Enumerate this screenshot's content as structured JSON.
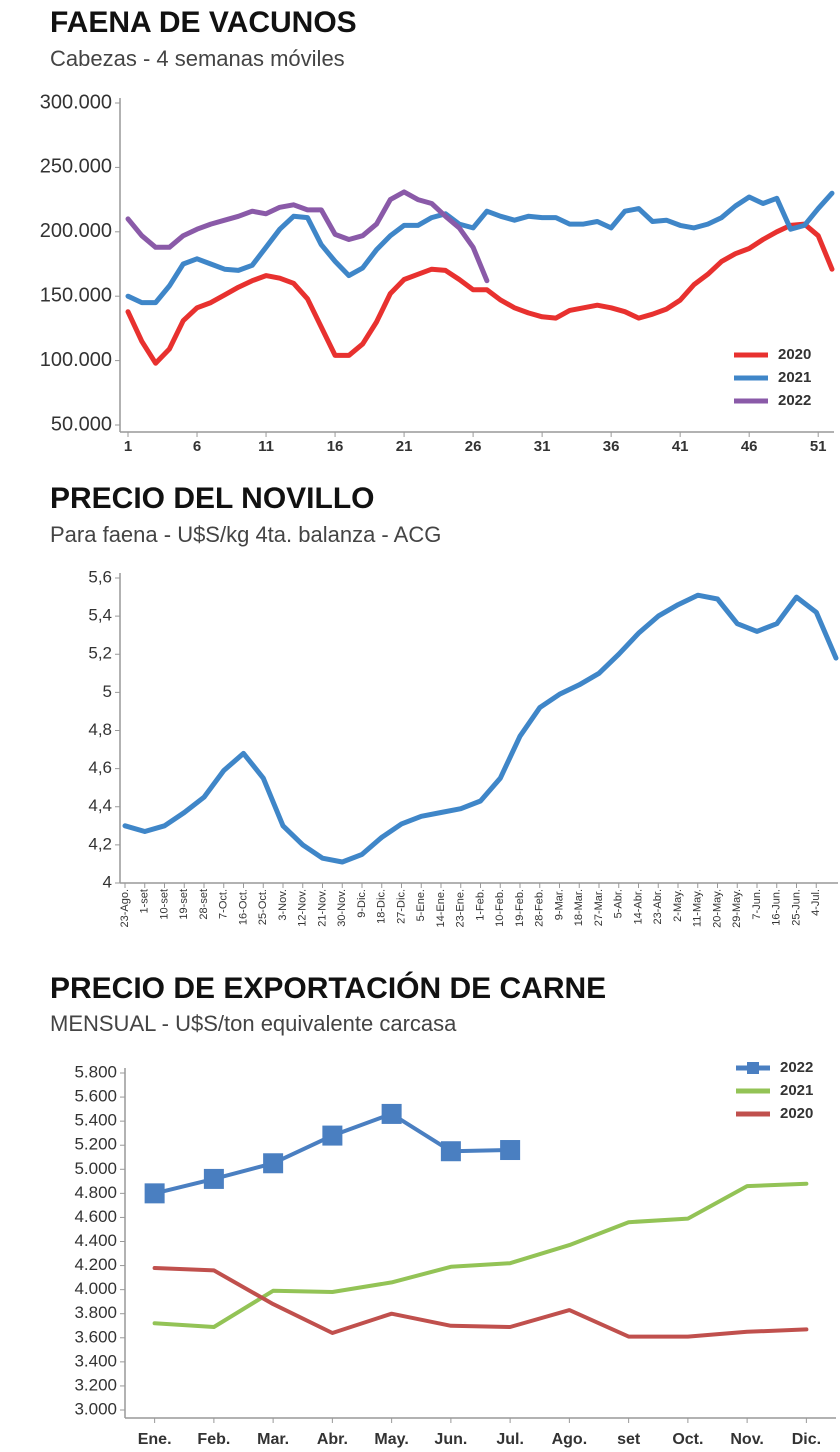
{
  "chart_data": [
    {
      "type": "line",
      "title": "FAENA DE VACUNOS",
      "subtitle": "Cabezas - 4 semanas móviles",
      "x": [
        1,
        2,
        3,
        4,
        5,
        6,
        7,
        8,
        9,
        10,
        11,
        12,
        13,
        14,
        15,
        16,
        17,
        18,
        19,
        20,
        21,
        22,
        23,
        24,
        25,
        26,
        27,
        28,
        29,
        30,
        31,
        32,
        33,
        34,
        35,
        36,
        37,
        38,
        39,
        40,
        41,
        42,
        43,
        44,
        45,
        46,
        47,
        48,
        49,
        50,
        51,
        52
      ],
      "xlim": [
        1,
        52
      ],
      "xticks": [
        1,
        6,
        11,
        16,
        21,
        26,
        31,
        36,
        41,
        46,
        51
      ],
      "ylim": [
        50000,
        300000
      ],
      "yticks": [
        {
          "value": 50000,
          "label": "50.000"
        },
        {
          "value": 100000,
          "label": "100.000"
        },
        {
          "value": 150000,
          "label": "150.000"
        },
        {
          "value": 200000,
          "label": "200.000"
        },
        {
          "value": 250000,
          "label": "250.000"
        },
        {
          "value": 300000,
          "label": "300.000"
        }
      ],
      "grid": false,
      "legend": "lower right",
      "series": [
        {
          "name": "2020",
          "color": "#e8312f",
          "values": [
            138000,
            115000,
            98000,
            109000,
            131000,
            141000,
            145000,
            151000,
            157000,
            162000,
            166000,
            164000,
            160000,
            148000,
            126000,
            104000,
            104000,
            113000,
            130000,
            152000,
            163000,
            167000,
            171000,
            170000,
            163000,
            155000,
            155000,
            147000,
            141000,
            137000,
            134000,
            133000,
            139000,
            141000,
            143000,
            141000,
            138000,
            133000,
            136000,
            140000,
            147000,
            159000,
            167000,
            177000,
            183000,
            187000,
            194000,
            200000,
            205000,
            206000,
            197000,
            171000
          ]
        },
        {
          "name": "2021",
          "color": "#3f86c8",
          "values": [
            150000,
            145000,
            145000,
            158000,
            175000,
            179000,
            175000,
            171000,
            170000,
            174000,
            188000,
            202000,
            212000,
            211000,
            190000,
            177000,
            166000,
            172000,
            186000,
            197000,
            205000,
            205000,
            211000,
            214000,
            206000,
            203000,
            216000,
            212000,
            209000,
            212000,
            211000,
            211000,
            206000,
            206000,
            208000,
            203000,
            216000,
            218000,
            208000,
            209000,
            205000,
            203000,
            206000,
            211000,
            220000,
            227000,
            222000,
            226000,
            202000,
            205000,
            218000,
            230000
          ]
        },
        {
          "name": "2022",
          "color": "#8a5aa8",
          "values": [
            210000,
            197000,
            188000,
            188000,
            197000,
            202000,
            206000,
            209000,
            212000,
            216000,
            214000,
            219000,
            221000,
            217000,
            217000,
            198000,
            194000,
            197000,
            206000,
            225000,
            231000,
            225000,
            222000,
            212000,
            203000,
            188000,
            162000,
            null,
            null,
            null,
            null,
            null,
            null,
            null,
            null,
            null,
            null,
            null,
            null,
            null,
            null,
            null,
            null,
            null,
            null,
            null,
            null,
            null,
            null,
            null,
            null,
            null
          ]
        }
      ]
    },
    {
      "type": "line",
      "title": "PRECIO DEL NOVILLO",
      "subtitle": "Para faena - U$S/kg 4ta. balanza - ACG",
      "categories": [
        "23-Ago.",
        "1-set",
        "10-set",
        "19-set",
        "28-set",
        "7-Oct.",
        "16-Oct.",
        "25-Oct.",
        "3-Nov.",
        "12-Nov.",
        "21-Nov.",
        "30-Nov.",
        "9-Dic.",
        "18-Dic.",
        "27-Dic.",
        "5-Ene.",
        "14-Ene.",
        "23-Ene.",
        "1-Feb.",
        "10-Feb.",
        "19-Feb.",
        "28-Feb.",
        "9-Mar.",
        "18-Mar.",
        "27-Mar.",
        "5-Abr.",
        "14-Abr.",
        "23-Abr.",
        "2-May.",
        "11-May.",
        "20-May.",
        "29-May.",
        "7-Jun.",
        "16-Jun.",
        "25-Jun.",
        "4-Jul.",
        null
      ],
      "ylim": [
        4,
        5.6
      ],
      "yticks": [
        4,
        {
          "value": 4.2,
          "label": "4,2"
        },
        {
          "value": 4.4,
          "label": "4,4"
        },
        {
          "value": 4.6,
          "label": "4,6"
        },
        {
          "value": 4.8,
          "label": "4,8"
        },
        5,
        {
          "value": 5.2,
          "label": "5,2"
        },
        {
          "value": 5.4,
          "label": "5,4"
        },
        {
          "value": 5.6,
          "label": "5,6"
        }
      ],
      "grid": false,
      "series": [
        {
          "color": "#3f86c8",
          "values": [
            4.3,
            4.27,
            4.3,
            4.37,
            4.45,
            4.59,
            4.68,
            4.55,
            4.3,
            4.2,
            4.13,
            4.11,
            4.15,
            4.24,
            4.31,
            4.35,
            4.37,
            4.39,
            4.43,
            4.55,
            4.77,
            4.92,
            4.99,
            5.04,
            5.1,
            5.2,
            5.31,
            5.4,
            5.46,
            5.51,
            5.49,
            5.36,
            5.32,
            5.36,
            5.5,
            5.42,
            5.18
          ]
        }
      ]
    },
    {
      "type": "line",
      "title": "PRECIO DE EXPORTACIÓN DE CARNE",
      "subtitle": "MENSUAL - U$S/ton equivalente carcasa",
      "categories": [
        "Ene.",
        "Feb.",
        "Mar.",
        "Abr.",
        "May.",
        "Jun.",
        "Jul.",
        "Ago.",
        "set",
        "Oct.",
        "Nov.",
        "Dic."
      ],
      "ylim": [
        3000,
        5800
      ],
      "yticks": [
        {
          "value": 3000,
          "label": "3.000"
        },
        {
          "value": 3200,
          "label": "3.200"
        },
        {
          "value": 3400,
          "label": "3.400"
        },
        {
          "value": 3600,
          "label": "3.600"
        },
        {
          "value": 3800,
          "label": "3.800"
        },
        {
          "value": 4000,
          "label": "4.000"
        },
        {
          "value": 4200,
          "label": "4.200"
        },
        {
          "value": 4400,
          "label": "4.400"
        },
        {
          "value": 4600,
          "label": "4.600"
        },
        {
          "value": 4800,
          "label": "4.800"
        },
        {
          "value": 5000,
          "label": "5.000"
        },
        {
          "value": 5200,
          "label": "5.200"
        },
        {
          "value": 5400,
          "label": "5.400"
        },
        {
          "value": 5600,
          "label": "5.600"
        },
        {
          "value": 5800,
          "label": "5.800"
        }
      ],
      "grid": false,
      "legend": "upper right",
      "series": [
        {
          "name": "2022",
          "color": "#4a7fc1",
          "marker": "square",
          "values": [
            4800,
            4920,
            5050,
            5280,
            5460,
            5150,
            5160,
            null,
            null,
            null,
            null,
            null
          ]
        },
        {
          "name": "2021",
          "color": "#93c356",
          "values": [
            3720,
            3690,
            3990,
            3980,
            4060,
            4190,
            4220,
            4370,
            4560,
            4590,
            4860,
            4880
          ]
        },
        {
          "name": "2020",
          "color": "#c0504d",
          "values": [
            4180,
            4160,
            3880,
            3640,
            3800,
            3700,
            3690,
            3830,
            3610,
            3610,
            3650,
            3670
          ]
        }
      ]
    }
  ]
}
